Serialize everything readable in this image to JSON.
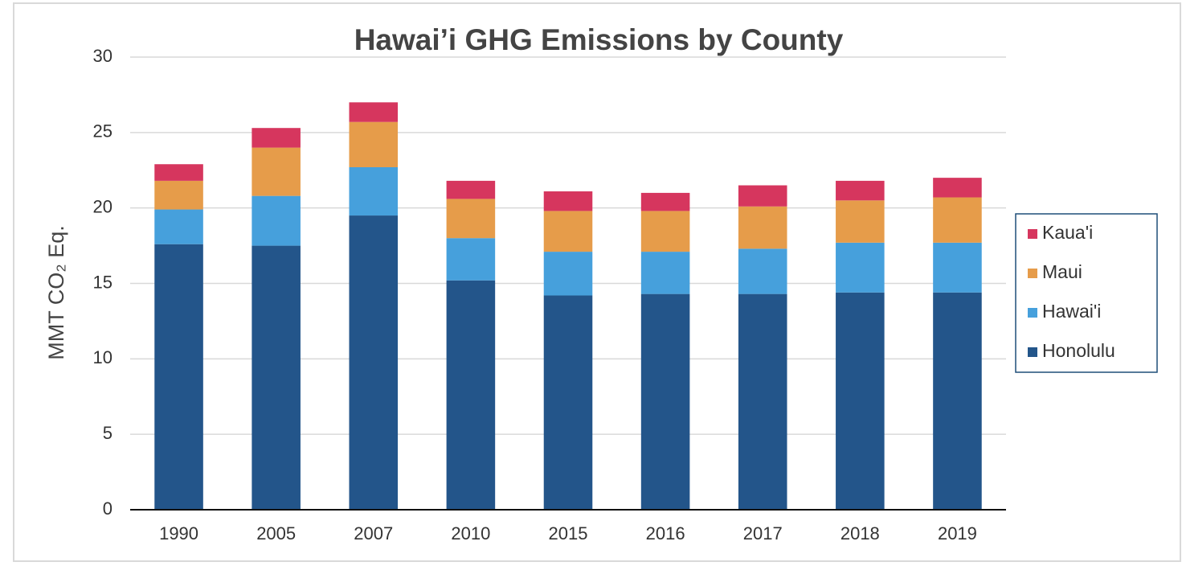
{
  "chart_data": {
    "type": "stacked_bar",
    "title": "Hawai’i GHG Emissions by County",
    "y_label": "MMT CO₂ Eq.",
    "categories": [
      "1990",
      "2005",
      "2007",
      "2010",
      "2015",
      "2016",
      "2017",
      "2018",
      "2019"
    ],
    "series": [
      {
        "name": "Honolulu",
        "color": "#23558a",
        "values": [
          17.6,
          17.5,
          19.5,
          15.2,
          14.2,
          14.3,
          14.3,
          14.4,
          14.4
        ]
      },
      {
        "name": "Hawai'i",
        "color": "#46a0dc",
        "values": [
          2.3,
          3.3,
          3.2,
          2.8,
          2.9,
          2.8,
          3.0,
          3.3,
          3.3
        ]
      },
      {
        "name": "Maui",
        "color": "#e69c4a",
        "values": [
          1.9,
          3.2,
          3.0,
          2.6,
          2.7,
          2.7,
          2.8,
          2.8,
          3.0
        ]
      },
      {
        "name": "Kaua'i",
        "color": "#d6365e",
        "values": [
          1.1,
          1.3,
          1.3,
          1.2,
          1.3,
          1.2,
          1.4,
          1.3,
          1.3
        ]
      }
    ],
    "ylim": [
      0,
      30
    ],
    "yticks": [
      0,
      5,
      10,
      15,
      20,
      25,
      30
    ],
    "grid": true,
    "legend": "right"
  }
}
